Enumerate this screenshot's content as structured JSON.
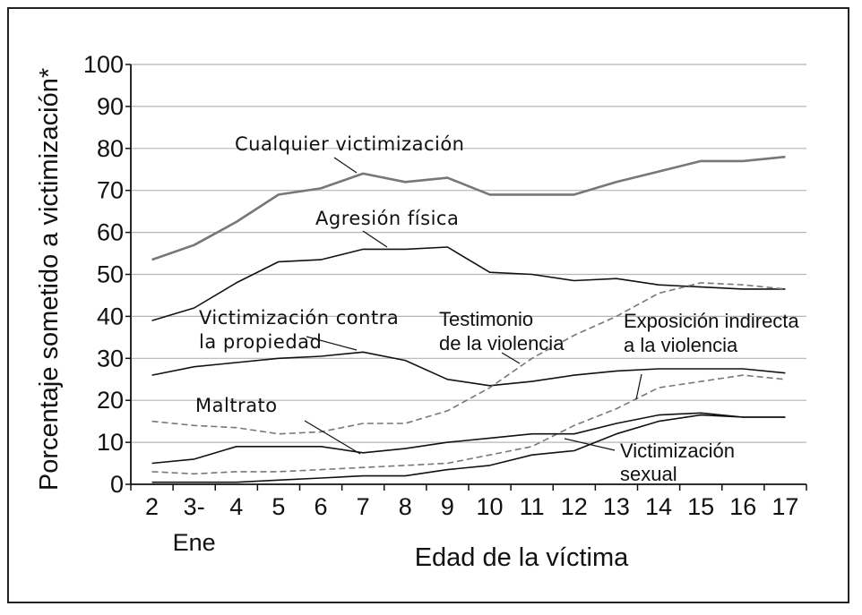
{
  "chart_data": {
    "type": "line",
    "ylabel": "Porcentaje sometido a victimización*",
    "xlabel": "Edad de la víctima",
    "ylim": [
      0,
      100
    ],
    "yticks": [
      "0",
      "10",
      "20",
      "30",
      "40",
      "50",
      "60",
      "70",
      "80",
      "90",
      "100"
    ],
    "categories": [
      "2",
      "3-",
      "4",
      "5",
      "6",
      "7",
      "8",
      "9",
      "10",
      "11",
      "12",
      "13",
      "14",
      "15",
      "16",
      "17"
    ],
    "category_sublabels": [
      "",
      "Ene",
      "",
      "",
      "",
      "",
      "",
      "",
      "",
      "",
      "",
      "",
      "",
      "",
      "",
      ""
    ],
    "grid": true,
    "series": [
      {
        "name": "Cualquier victimización",
        "style": "solid",
        "color": "#777777",
        "values": [
          53.5,
          57,
          62.5,
          69,
          70.5,
          74,
          72,
          73,
          69,
          69,
          69,
          72,
          74.5,
          77,
          77,
          78
        ]
      },
      {
        "name": "Agresión física",
        "style": "solid",
        "color": "#111111",
        "values": [
          39,
          42,
          48,
          53,
          53.5,
          56,
          56,
          56.5,
          50.5,
          50,
          48.5,
          49,
          47.5,
          47,
          46.5,
          46.5
        ]
      },
      {
        "name": "Victimización contra la propiedad",
        "style": "solid",
        "color": "#111111",
        "values": [
          26,
          28,
          29,
          30,
          30.5,
          31.5,
          29.5,
          25,
          23.5,
          24.5,
          26,
          27,
          27.5,
          27.5,
          27.5,
          26.5
        ]
      },
      {
        "name": "Testimonio de la violencia",
        "style": "dashed",
        "color": "#777777",
        "values": [
          15,
          14,
          13.5,
          12,
          12.5,
          14.5,
          14.5,
          17.5,
          23,
          30,
          35.5,
          40,
          45.5,
          48,
          47.5,
          46.5
        ]
      },
      {
        "name": "Exposición indirecta a la violencia",
        "style": "dashed",
        "color": "#777777",
        "values": [
          3,
          2.5,
          3,
          3,
          3.5,
          4,
          4.5,
          5,
          7,
          9,
          14,
          18,
          23,
          24.5,
          26,
          25
        ]
      },
      {
        "name": "Maltrato",
        "style": "solid",
        "color": "#111111",
        "values": [
          5,
          6,
          9,
          9,
          9,
          7.5,
          8.5,
          10,
          11,
          12,
          12,
          14.5,
          16.5,
          17,
          16,
          16
        ]
      },
      {
        "name": "Victimización sexual",
        "style": "solid",
        "color": "#111111",
        "values": [
          0.5,
          0.5,
          0.5,
          1,
          1.5,
          2,
          2,
          3.5,
          4.5,
          7,
          8,
          12,
          15,
          16.5,
          16,
          16
        ]
      }
    ],
    "annotations": [
      {
        "text": "Cualquier victimización",
        "series": "Cualquier victimización"
      },
      {
        "text": "Agresión física",
        "series": "Agresión física"
      },
      {
        "lines": [
          "Victimización contra",
          "la propiedad"
        ],
        "series": "Victimización contra la propiedad"
      },
      {
        "lines": [
          "Testimonio",
          "de la violencia"
        ],
        "series": "Testimonio de la violencia"
      },
      {
        "lines": [
          "Exposición indirecta",
          "a la violencia"
        ],
        "series": "Exposición indirecta a la violencia"
      },
      {
        "text": "Maltrato",
        "series": "Maltrato"
      },
      {
        "lines": [
          "Victimización",
          "sexual"
        ],
        "series": "Victimización sexual"
      }
    ]
  }
}
